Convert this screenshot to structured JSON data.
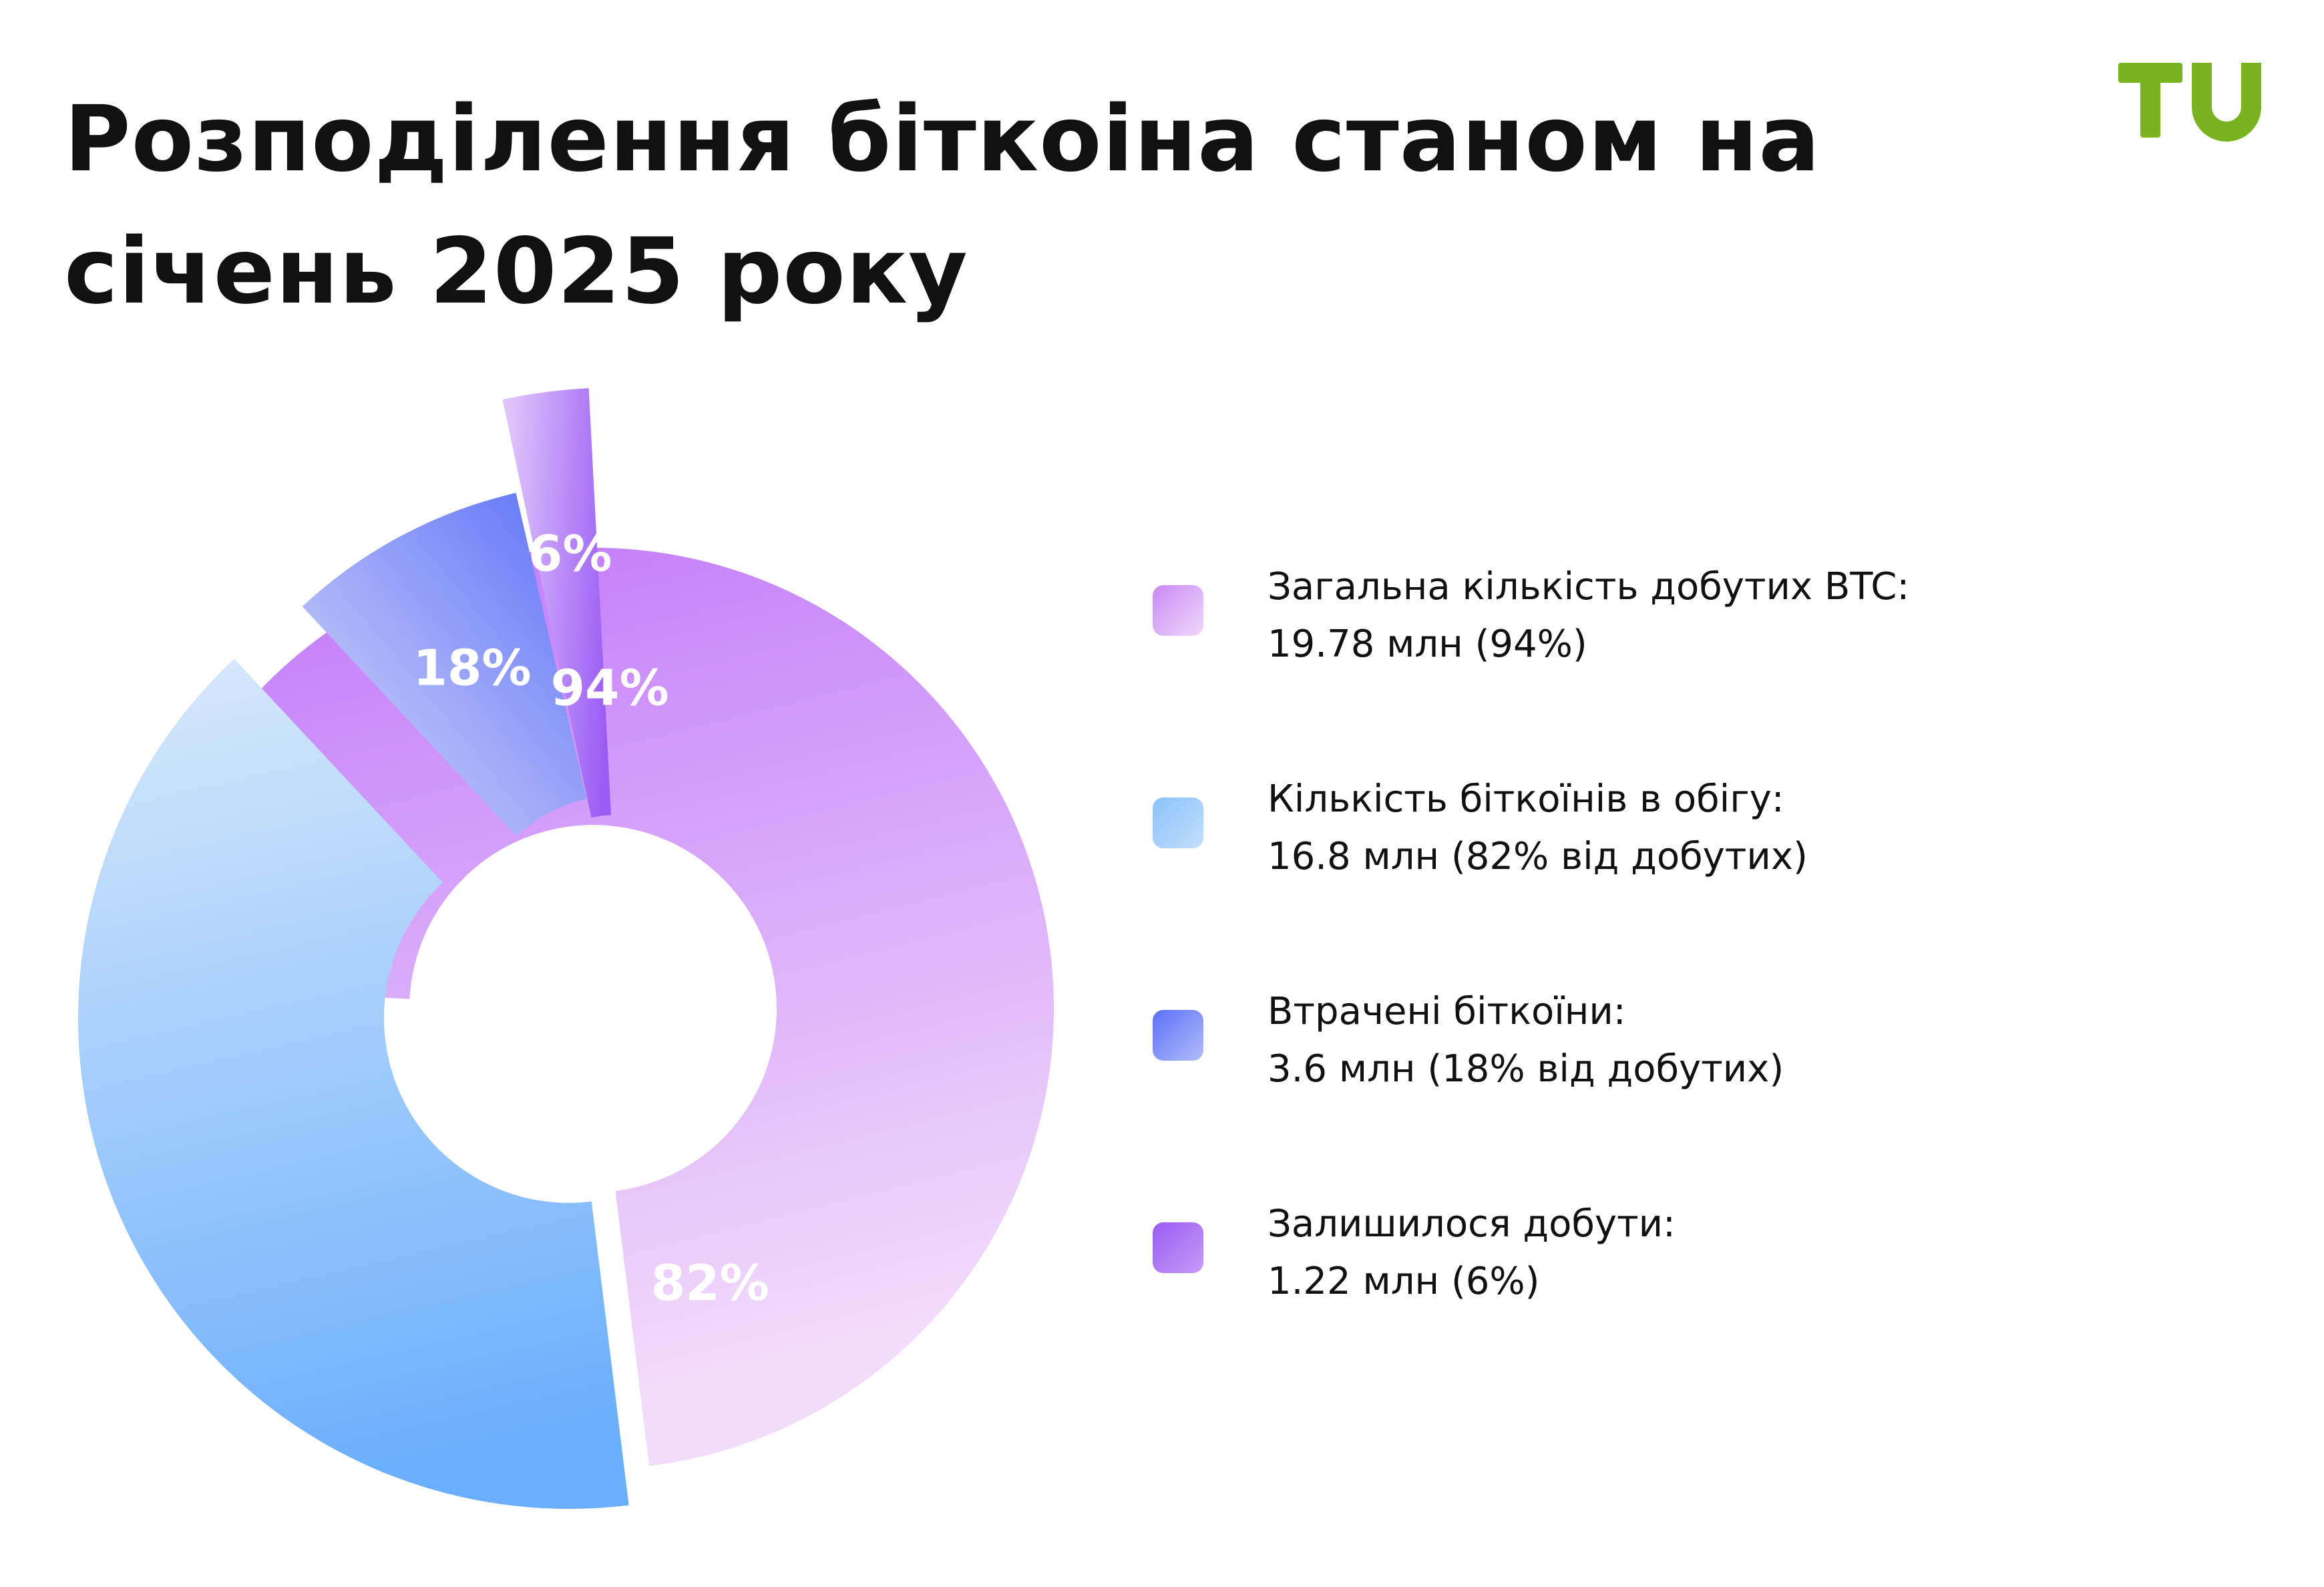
{
  "title": "Розподілення біткоіна станом на січень 2025 року",
  "logo": {
    "text": "TU",
    "color": "#79b31f"
  },
  "chart_data": {
    "type": "pie",
    "style": "exploded donut",
    "slices": [
      {
        "label": "94%",
        "value": 94,
        "colors": [
          "#c076f9",
          "#f2dcfb"
        ]
      },
      {
        "label": "82%",
        "value": 82,
        "colors": [
          "#d6e8fb",
          "#6aaefc"
        ]
      },
      {
        "label": "18%",
        "value": 18,
        "colors": [
          "#dcdcf8",
          "#5a70f8"
        ]
      },
      {
        "label": "6%",
        "value": 6,
        "colors": [
          "#dfc4fb",
          "#9a5cf4"
        ]
      }
    ]
  },
  "legend": [
    {
      "line1": "Загальна кількість добутих BTC:",
      "line2": "19.78 млн (94%)",
      "colors": [
        "#c98af7",
        "#f0d8fb"
      ]
    },
    {
      "line1": "Кількість біткоїнів в обігу:",
      "line2": "16.8 млн (82% від добутих)",
      "colors": [
        "#8cc3fc",
        "#c2defb"
      ]
    },
    {
      "line1": "Втрачені біткоїни:",
      "line2": "3.6 млн (18% від добутих)",
      "colors": [
        "#5a70f8",
        "#b3bdf9"
      ]
    },
    {
      "line1": "Залишилося добути:",
      "line2": "1.22 млн (6%)",
      "colors": [
        "#9a5cf4",
        "#c79af8"
      ]
    }
  ]
}
